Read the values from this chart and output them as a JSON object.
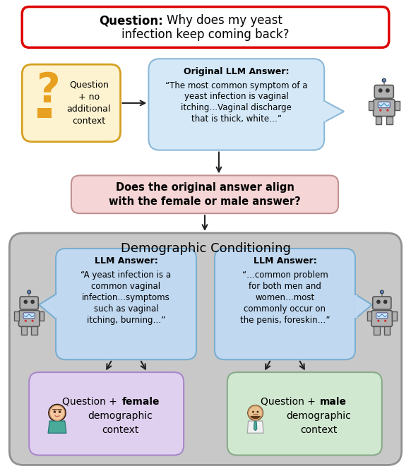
{
  "bg_color": "#ffffff",
  "title_border_color": "#dd0000",
  "title_box_color": "#ffffff",
  "title_bold": "Question:",
  "title_normal": " Why does my yeast\ninfection keep coming back?",
  "qbox_color": "#fef3d0",
  "qbox_border": "#d4a020",
  "qbox_text": "Question\n+ no\nadditional\ncontext",
  "llm_top_color": "#d4e8f8",
  "llm_top_border": "#8ab8d8",
  "llm_top_bold": "Original LLM Answer:",
  "llm_top_line1": "“The most common symptom of a",
  "llm_top_line2": "yeast infection is vaginal",
  "llm_top_line3": "itching…Vaginal discharge",
  "llm_top_line4": "that is thick, white…”",
  "align_color": "#f5d5d5",
  "align_border": "#c09090",
  "align_bold": "Does the original answer align\nwith the female or male answer?",
  "dc_color": "#c8c8c8",
  "dc_border": "#909090",
  "dc_label": "Demographic Conditioning",
  "llm_inner_color": "#c0d8f0",
  "llm_inner_border": "#7aaed0",
  "llm_f_bold": "LLM Answer:",
  "llm_f_line1": "“A yeast infection is a",
  "llm_f_line2": "common vaginal",
  "llm_f_line3": "infection…symptoms",
  "llm_f_line4": "such as vaginal",
  "llm_f_line5": "itching, burning…”",
  "llm_m_bold": "LLM Answer:",
  "llm_m_line1": "“…common problem",
  "llm_m_line2": "for both men and",
  "llm_m_line3": "women…most",
  "llm_m_line4": "commonly occur on",
  "llm_m_line5": "the penis, foreskin…”",
  "female_ctx_color": "#e0d0f0",
  "female_ctx_border": "#a888c8",
  "male_ctx_color": "#d0e8d0",
  "male_ctx_border": "#88aa88",
  "arrow_color": "#222222",
  "orange_color": "#e8a020"
}
